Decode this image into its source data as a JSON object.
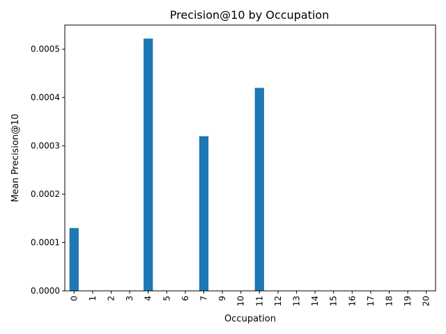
{
  "chart_data": {
    "type": "bar",
    "title": "Precision@10 by Occupation",
    "xlabel": "Occupation",
    "ylabel": "Mean Precision@10",
    "categories": [
      "0",
      "1",
      "2",
      "3",
      "4",
      "5",
      "6",
      "7",
      "9",
      "10",
      "11",
      "12",
      "13",
      "14",
      "15",
      "16",
      "17",
      "18",
      "19",
      "20"
    ],
    "values": [
      0.00013,
      0,
      0,
      0,
      0.000522,
      0,
      0,
      0.00032,
      0,
      0,
      0.00042,
      0,
      0,
      0,
      0,
      0,
      0,
      0,
      0,
      0
    ],
    "ylim": [
      0,
      0.00055
    ],
    "yticks": [
      0,
      0.0001,
      0.0002,
      0.0003,
      0.0004,
      0.0005
    ],
    "ytick_labels": [
      "0.0000",
      "0.0001",
      "0.0002",
      "0.0003",
      "0.0004",
      "0.0005"
    ],
    "bar_color": "#1f77b4",
    "grid": false,
    "legend": "none"
  }
}
